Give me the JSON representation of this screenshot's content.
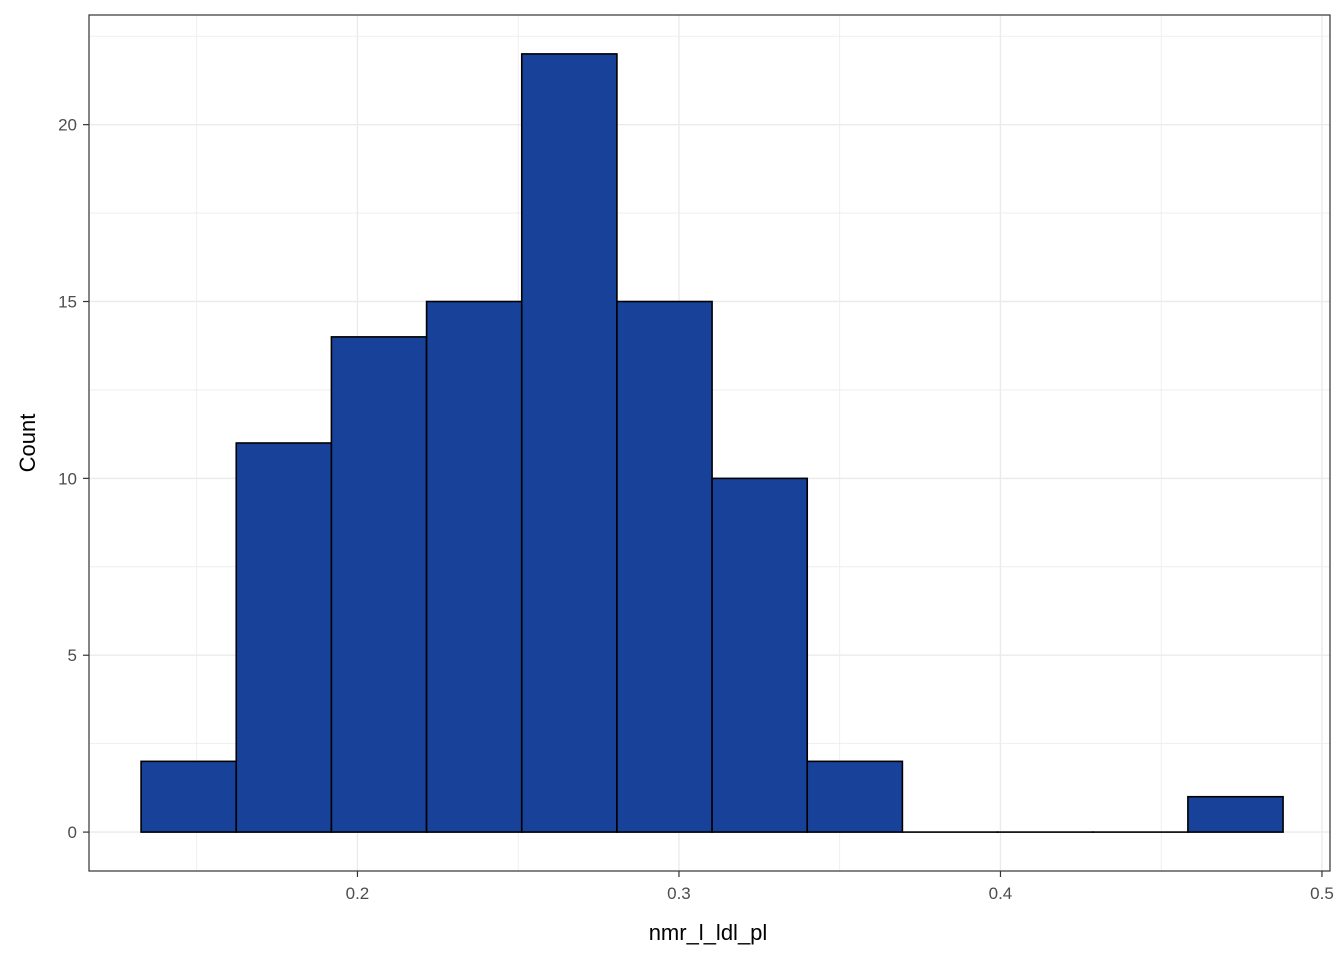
{
  "chart_data": {
    "type": "histogram",
    "xlabel": "nmr_l_ldl_pl",
    "ylabel": "Count",
    "xlim": [
      0.1165,
      0.5025
    ],
    "ylim": [
      -1.1,
      23.1
    ],
    "x_ticks": [
      0.2,
      0.3,
      0.4,
      0.5
    ],
    "x_tick_labels": [
      "0.2",
      "0.3",
      "0.4",
      "0.5"
    ],
    "y_ticks": [
      0,
      5,
      10,
      15,
      20
    ],
    "y_tick_labels": [
      "0",
      "5",
      "10",
      "15",
      "20"
    ],
    "x_minor_ticks": [
      0.15,
      0.25,
      0.35,
      0.45
    ],
    "y_minor_ticks": [
      2.5,
      7.5,
      12.5,
      17.5,
      22.5
    ],
    "grid": true,
    "bin_edges": [
      0.1327,
      0.1623,
      0.1919,
      0.2215,
      0.2511,
      0.2807,
      0.3103,
      0.3399,
      0.3695,
      0.3991,
      0.4287,
      0.4583,
      0.4879
    ],
    "counts": [
      2,
      11,
      14,
      15,
      22,
      15,
      10,
      2,
      0,
      0,
      0,
      1
    ],
    "bar_fill": "#18429a",
    "bar_stroke": "#000000",
    "grid_color": "#ebebeb",
    "panel_border": "#333333"
  }
}
